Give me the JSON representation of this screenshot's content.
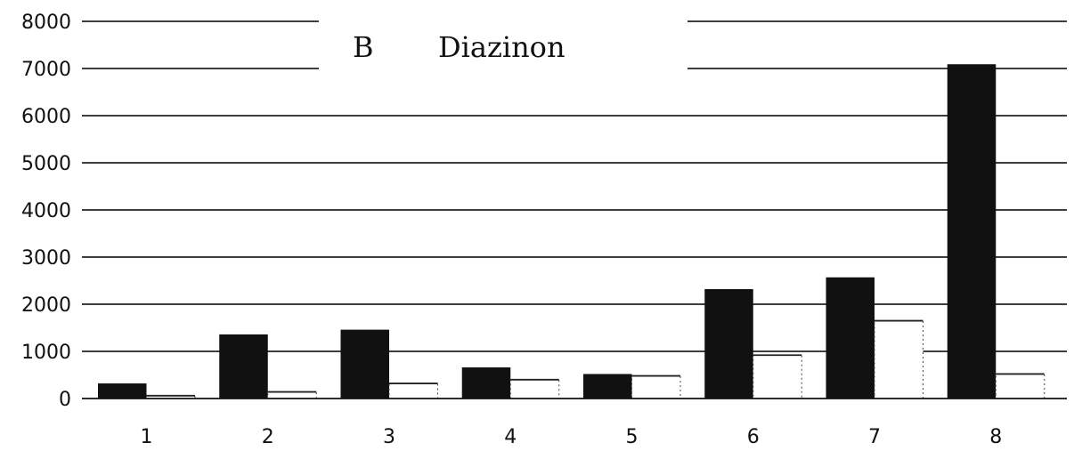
{
  "chart_data": {
    "type": "bar",
    "title_letter": "B",
    "title": "Diazinon",
    "xlabel": "",
    "ylabel": "",
    "categories": [
      "1",
      "2",
      "3",
      "4",
      "5",
      "6",
      "7",
      "8"
    ],
    "series": [
      {
        "values": [
          320,
          1360,
          1460,
          660,
          520,
          2320,
          2570,
          7090
        ],
        "color": "#111111"
      },
      {
        "values": [
          60,
          140,
          320,
          400,
          480,
          920,
          1650,
          520
        ],
        "color": "#ffffff"
      }
    ],
    "yticks": [
      "0",
      "1000",
      "2000",
      "3000",
      "4000",
      "5000",
      "6000",
      "7000",
      "8000"
    ],
    "ylim": [
      0,
      8000
    ],
    "grid": true,
    "legend": "none"
  }
}
